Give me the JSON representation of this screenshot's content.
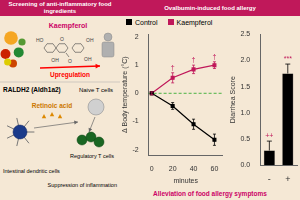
{
  "title": [
    "Screening of anti-inflammatory food ingredients",
    "Ovalbumin-induced food allergy"
  ],
  "annotations": [
    {
      "text": "Kaempferol",
      "color": "#cc0066"
    },
    {
      "text": "HO",
      "color": "#444444"
    },
    {
      "text": "O",
      "color": "#444444"
    },
    {
      "text": "OH",
      "color": "#444444"
    },
    {
      "text": "O",
      "color": "#444444"
    },
    {
      "text": "OH",
      "color": "#444444"
    },
    {
      "text": "OH",
      "color": "#444444"
    },
    {
      "text": "Upregulation",
      "color": "red"
    },
    {
      "text": "RALDH2 (Aldh1a2)",
      "color": "black"
    },
    {
      "text": "Retinoic acid",
      "color": "#cc7700"
    },
    {
      "text": "Naive T cells",
      "color": "black"
    },
    {
      "text": "Regulatory T cells",
      "color": "black"
    },
    {
      "text": "Intestinal dendritic cells",
      "color": "black"
    },
    {
      "text": "Suppression of inflammation",
      "color": "black"
    },
    {
      "text": "Alleviation of food allergy symptoms",
      "color": "#cc0066"
    }
  ],
  "chart_data": [
    {
      "type": "line",
      "x": [
        0,
        20,
        40,
        60
      ],
      "xlabel": "minutes",
      "ylabel": "Δ Body temperature (°C)",
      "xlim": [
        -3,
        68
      ],
      "xticks": [
        0,
        20,
        40,
        60
      ],
      "ylim": [
        -2.2,
        2.1
      ],
      "yticks": [
        -2,
        -1,
        0,
        1,
        2
      ],
      "grid": false,
      "legend": "top",
      "series": [
        {
          "name": "Control",
          "color": "black",
          "marker": "square",
          "values": [
            0.0,
            -0.45,
            -1.1,
            -1.65
          ],
          "errors": [
            0.05,
            0.12,
            0.18,
            0.2
          ]
        },
        {
          "name": "Kaempferol",
          "color": "#c0185a",
          "marker": "square",
          "values": [
            0.0,
            0.55,
            0.85,
            1.0
          ],
          "errors": [
            0.05,
            0.18,
            0.15,
            0.12
          ]
        }
      ],
      "reference_line": {
        "y": 0,
        "color": "#009900",
        "line_style": "dashed"
      },
      "annotations": [
        {
          "series": "Kaempferol",
          "x": 20,
          "text": "†",
          "color": "#c0185a"
        },
        {
          "series": "Kaempferol",
          "x": 40,
          "text": "†",
          "color": "#c0185a"
        },
        {
          "series": "Kaempferol",
          "x": 60,
          "text": "†",
          "color": "#c0185a"
        }
      ]
    },
    {
      "type": "bar",
      "categories": [
        "-",
        "+"
      ],
      "values": [
        0.28,
        1.75
      ],
      "errors_upper": [
        0.18,
        0.18
      ],
      "color": "black",
      "ylabel": "Diarrhea Score",
      "ylim": [
        0,
        2.5
      ],
      "yticks": [
        {
          "value": 0,
          "label": "0.0"
        },
        0.5,
        {
          "value": 1,
          "label": "1.0"
        },
        1.5,
        {
          "value": 2,
          "label": "2.0"
        },
        2.5
      ],
      "grid": false,
      "annotations": [
        {
          "category": "-",
          "text": "++",
          "color": "#c0185a"
        },
        {
          "category": "+",
          "text": "***",
          "color": "#c0185a"
        }
      ]
    }
  ]
}
